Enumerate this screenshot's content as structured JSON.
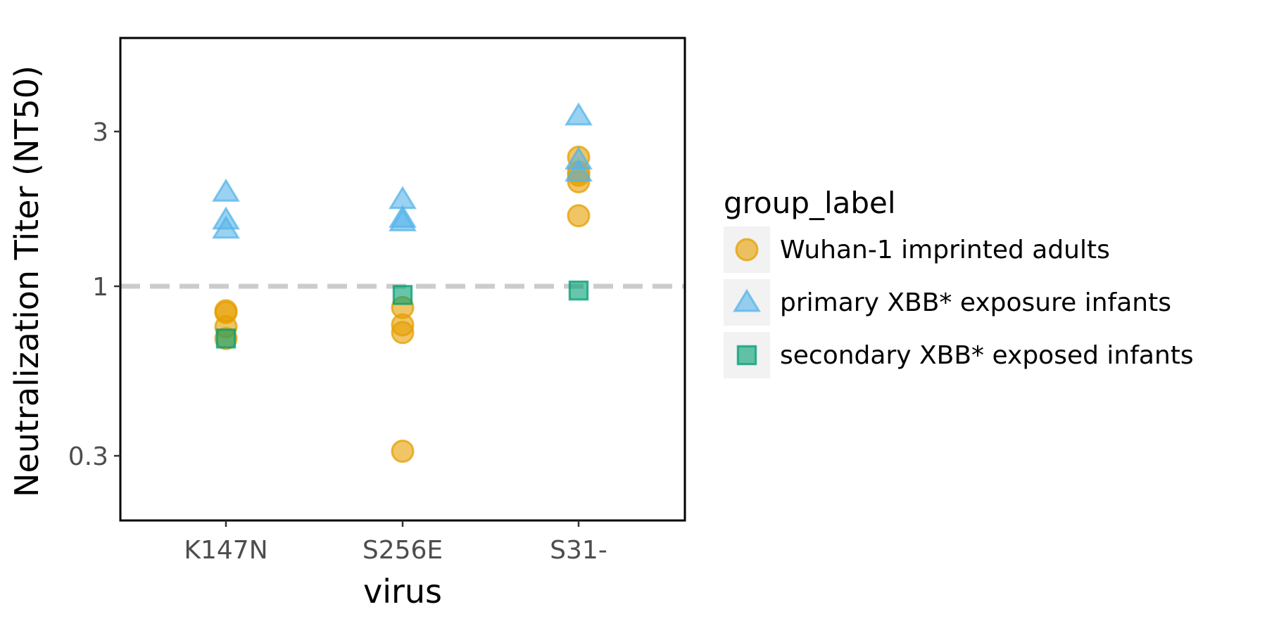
{
  "chart_data": {
    "type": "scatter",
    "xlabel": "virus",
    "ylabel": "Neutralization Titer (NT50)",
    "categories": [
      "K147N",
      "S256E",
      "S31-"
    ],
    "y_scale": "log",
    "ylim": [
      0.2,
      6
    ],
    "y_ticks": [
      0.3,
      1,
      3
    ],
    "y_tick_labels": [
      "0.3",
      "1",
      "3"
    ],
    "reference_line": {
      "y": 1,
      "style": "dashed",
      "color": "#cccccc"
    },
    "grid": false,
    "legend": {
      "title": "group_label",
      "position": "right"
    },
    "series": [
      {
        "name": "Wuhan-1 imprinted adults",
        "marker": "circle",
        "color": "#E69F00",
        "points": [
          {
            "x": "K147N",
            "y": 0.83
          },
          {
            "x": "K147N",
            "y": 0.84
          },
          {
            "x": "K147N",
            "y": 0.75
          },
          {
            "x": "K147N",
            "y": 0.69
          },
          {
            "x": "S256E",
            "y": 0.86
          },
          {
            "x": "S256E",
            "y": 0.76
          },
          {
            "x": "S256E",
            "y": 0.72
          },
          {
            "x": "S256E",
            "y": 0.31
          },
          {
            "x": "S31-",
            "y": 2.5
          },
          {
            "x": "S31-",
            "y": 2.2
          },
          {
            "x": "S31-",
            "y": 2.1
          },
          {
            "x": "S31-",
            "y": 2.25
          },
          {
            "x": "S31-",
            "y": 1.65
          }
        ]
      },
      {
        "name": "primary XBB* exposure infants",
        "marker": "triangle",
        "color": "#56B4E9",
        "points": [
          {
            "x": "K147N",
            "y": 1.95
          },
          {
            "x": "K147N",
            "y": 1.6
          },
          {
            "x": "K147N",
            "y": 1.5
          },
          {
            "x": "S256E",
            "y": 1.85
          },
          {
            "x": "S256E",
            "y": 1.62
          },
          {
            "x": "S256E",
            "y": 1.58
          },
          {
            "x": "S31-",
            "y": 3.35
          },
          {
            "x": "S31-",
            "y": 2.45
          },
          {
            "x": "S31-",
            "y": 2.25
          }
        ]
      },
      {
        "name": "secondary XBB* exposed infants",
        "marker": "square",
        "color": "#009E73",
        "points": [
          {
            "x": "K147N",
            "y": 0.69
          },
          {
            "x": "S256E",
            "y": 0.94
          },
          {
            "x": "S31-",
            "y": 0.97
          }
        ]
      }
    ]
  }
}
